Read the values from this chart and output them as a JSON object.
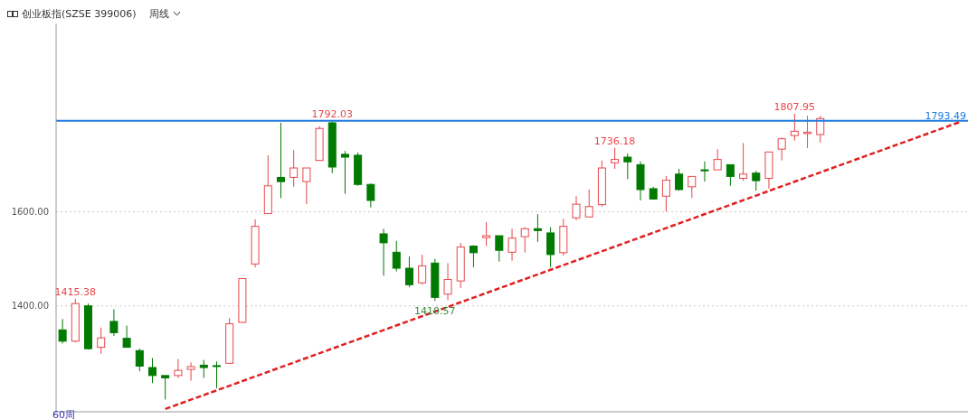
{
  "chart_data": {
    "type": "candlestick",
    "title": "创业板指(SZSE 399006)",
    "subtitle": "周线",
    "categories": [
      null,
      null,
      null,
      null,
      null,
      null,
      null,
      null,
      null,
      null,
      null,
      null,
      null,
      null,
      null,
      null,
      null,
      null,
      null,
      null,
      null,
      null,
      null,
      null,
      null,
      null,
      null,
      null,
      null,
      null,
      null,
      null,
      null,
      null,
      null,
      null,
      null,
      null,
      null,
      null,
      null,
      null,
      null,
      null,
      null,
      null,
      null,
      null,
      null,
      null,
      null,
      null,
      null,
      null,
      null,
      null,
      null,
      null,
      null,
      null,
      null,
      null,
      null,
      null,
      null,
      null,
      null,
      null,
      null,
      null,
      null
    ],
    "ohlc": [
      [
        1349,
        1372,
        1320,
        1325
      ],
      [
        1325,
        1415.38,
        1323,
        1405
      ],
      [
        1400,
        1405,
        1307,
        1309
      ],
      [
        1312,
        1354,
        1298,
        1332
      ],
      [
        1367,
        1393,
        1336,
        1343
      ],
      [
        1331,
        1358,
        1311,
        1312
      ],
      [
        1305,
        1309,
        1261,
        1272
      ],
      [
        1269,
        1289,
        1236,
        1252
      ],
      [
        1252,
        1252,
        1201,
        1247
      ],
      [
        1252,
        1287,
        1247,
        1263
      ],
      [
        1265,
        1280,
        1241,
        1271
      ],
      [
        1274,
        1285,
        1247,
        1269
      ],
      [
        1273,
        1282,
        1225,
        1272
      ],
      [
        1278,
        1374,
        1277,
        1362
      ],
      [
        1365,
        1459,
        1364,
        1458
      ],
      [
        1489,
        1584,
        1482,
        1569
      ],
      [
        1596,
        1720,
        1596,
        1655
      ],
      [
        1673,
        1789,
        1629,
        1664
      ],
      [
        1673,
        1731,
        1653,
        1693
      ],
      [
        1664,
        1693,
        1616,
        1693
      ],
      [
        1709,
        1782,
        1709,
        1777
      ],
      [
        1789,
        1792.03,
        1682,
        1695
      ],
      [
        1722,
        1729,
        1638,
        1716
      ],
      [
        1720,
        1726,
        1655,
        1658
      ],
      [
        1658,
        1660,
        1609,
        1624
      ],
      [
        1553,
        1564,
        1464,
        1534
      ],
      [
        1514,
        1538,
        1473,
        1480
      ],
      [
        1480,
        1505,
        1440,
        1445
      ],
      [
        1449,
        1509,
        1445,
        1485
      ],
      [
        1491,
        1500,
        1410.57,
        1418
      ],
      [
        1425,
        1491,
        1412,
        1456
      ],
      [
        1453,
        1534,
        1438,
        1525
      ],
      [
        1527,
        1529,
        1482,
        1513
      ],
      [
        1545,
        1578,
        1527,
        1549
      ],
      [
        1549,
        1549,
        1494,
        1518
      ],
      [
        1514,
        1564,
        1496,
        1544
      ],
      [
        1547,
        1567,
        1513,
        1564
      ],
      [
        1564,
        1595,
        1536,
        1560
      ],
      [
        1555,
        1567,
        1482,
        1509
      ],
      [
        1513,
        1585,
        1507,
        1569
      ],
      [
        1587,
        1633,
        1582,
        1616
      ],
      [
        1589,
        1647,
        1589,
        1611
      ],
      [
        1615,
        1709,
        1611,
        1693
      ],
      [
        1704,
        1736.18,
        1691,
        1711
      ],
      [
        1716,
        1724,
        1669,
        1706
      ],
      [
        1700,
        1707,
        1624,
        1647
      ],
      [
        1649,
        1653,
        1627,
        1627
      ],
      [
        1633,
        1676,
        1600,
        1667
      ],
      [
        1680,
        1691,
        1645,
        1647
      ],
      [
        1653,
        1675,
        1629,
        1675
      ],
      [
        1689,
        1707,
        1664,
        1687
      ],
      [
        1689,
        1733,
        1689,
        1711
      ],
      [
        1700,
        1700,
        1655,
        1675
      ],
      [
        1671,
        1746,
        1666,
        1680
      ],
      [
        1682,
        1687,
        1645,
        1666
      ],
      [
        1671,
        1727,
        1649,
        1727
      ],
      [
        1733,
        1758,
        1709,
        1755
      ],
      [
        1762,
        1807.95,
        1751,
        1771
      ],
      [
        1766,
        1804,
        1735,
        1769
      ],
      [
        1764,
        1804,
        1747,
        1798
      ],
      null,
      null,
      null,
      null,
      null,
      null,
      null,
      null,
      null,
      null,
      null
    ],
    "series": [
      {
        "type": "line",
        "color": "#e02020",
        "line_style": "dashed",
        "values": [
          null,
          null,
          null,
          null,
          null,
          null,
          null,
          null,
          1181,
          null,
          null,
          null,
          null,
          null,
          null,
          null,
          null,
          null,
          null,
          null,
          null,
          null,
          null,
          null,
          null,
          null,
          null,
          null,
          null,
          null,
          null,
          null,
          null,
          null,
          null,
          null,
          null,
          null,
          null,
          null,
          null,
          null,
          null,
          null,
          null,
          null,
          null,
          null,
          null,
          null,
          null,
          null,
          null,
          null,
          null,
          null,
          null,
          null,
          null,
          null,
          null,
          null,
          null,
          null,
          null,
          null,
          null,
          null,
          null,
          null,
          1792
        ]
      }
    ],
    "ylim": [
      1175,
      2000
    ],
    "yticks": [
      {
        "value": 1400,
        "label": "1400.00"
      },
      {
        "value": 1600,
        "label": "1600.00"
      }
    ],
    "grid": "y",
    "tick_labels": "y",
    "ref_lines": [
      {
        "axis": "y",
        "value": 1793.49,
        "label": "1793.49",
        "color": "#1e7be0"
      }
    ],
    "annotations": [
      {
        "text": "1415.38",
        "y": 1415.38
      },
      {
        "text": "1792.03",
        "y": 1792.03
      },
      {
        "text": "1410.57",
        "y": 1410.57
      },
      {
        "text": "1736.18",
        "y": 1736.18
      },
      {
        "text": "1807.95",
        "y": 1807.95
      },
      "60周"
    ]
  }
}
